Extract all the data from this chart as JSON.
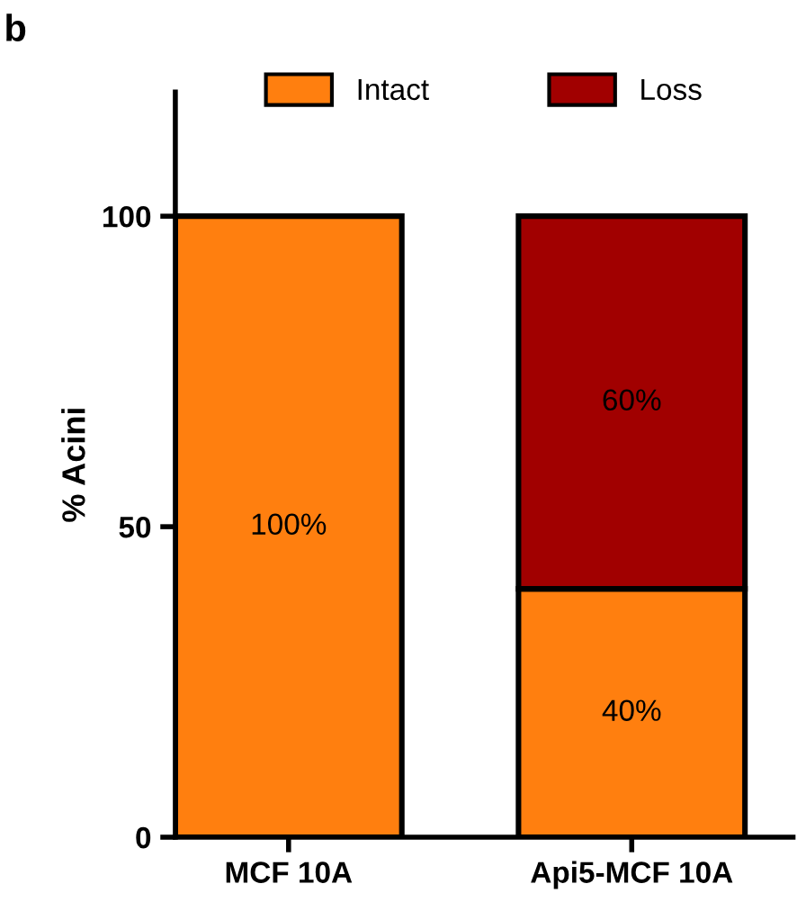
{
  "chart_data": {
    "type": "bar",
    "title": "b",
    "ylabel": "% Acini",
    "categories": [
      "MCF 10A",
      "Api5-MCF 10A"
    ],
    "stacked": true,
    "series": [
      {
        "name": "Intact",
        "color": "#ff7f0f",
        "values": [
          100,
          40
        ],
        "value_labels": [
          "100%",
          "40%"
        ]
      },
      {
        "name": "Loss",
        "color": "#a10000",
        "values": [
          null,
          60
        ],
        "value_labels": [
          null,
          "60%"
        ]
      }
    ],
    "ylim": [
      0,
      120
    ],
    "yticks": [
      0,
      50,
      100
    ],
    "legend": "top",
    "grid": false
  }
}
